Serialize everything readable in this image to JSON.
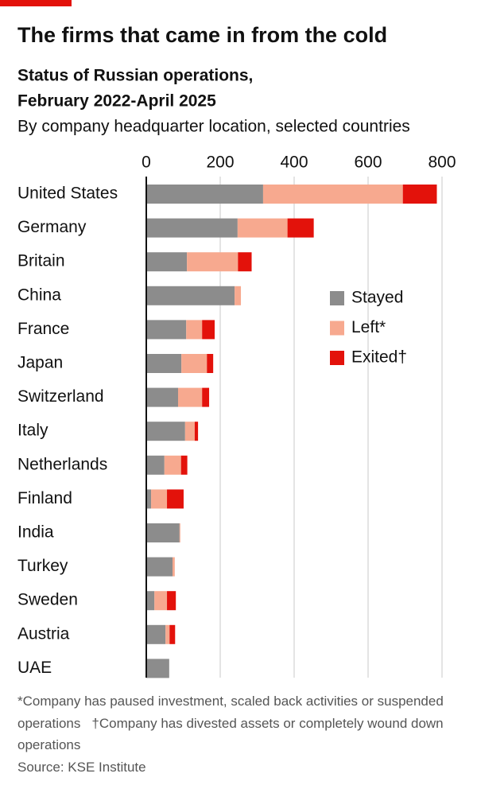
{
  "chart_data": {
    "type": "stacked-bar-horizontal",
    "title": "The firms that came in from the cold",
    "subtitle": [
      "Status of Russian operations,",
      "February 2022-April 2025"
    ],
    "description": "By company headquarter location, selected countries",
    "categories": [
      "United States",
      "Germany",
      "Britain",
      "China",
      "France",
      "Japan",
      "Switzerland",
      "Italy",
      "Netherlands",
      "Finland",
      "India",
      "Turkey",
      "Sweden",
      "Austria",
      "UAE"
    ],
    "series": [
      {
        "name": "Stayed",
        "color": "#8c8c8c",
        "values": [
          316,
          247,
          110,
          239,
          108,
          95,
          86,
          105,
          49,
          13,
          90,
          71,
          22,
          52,
          62
        ]
      },
      {
        "name": "Left*",
        "color": "#f7a98f",
        "values": [
          378,
          135,
          138,
          17,
          43,
          69,
          65,
          26,
          45,
          43,
          2,
          6,
          34,
          11,
          0
        ]
      },
      {
        "name": "Exited†",
        "color": "#e3120b",
        "values": [
          92,
          71,
          37,
          0,
          34,
          17,
          19,
          9,
          17,
          45,
          0,
          0,
          24,
          15,
          0
        ]
      }
    ],
    "xlim": [
      0,
      800
    ],
    "xticks": [
      0,
      200,
      400,
      600,
      800
    ],
    "grid": true,
    "notes": [
      "*Company has paused investment, scaled back activities or suspended operations",
      "†Company has divested assets or completely wound down operations"
    ],
    "source": "Source: KSE Institute"
  }
}
